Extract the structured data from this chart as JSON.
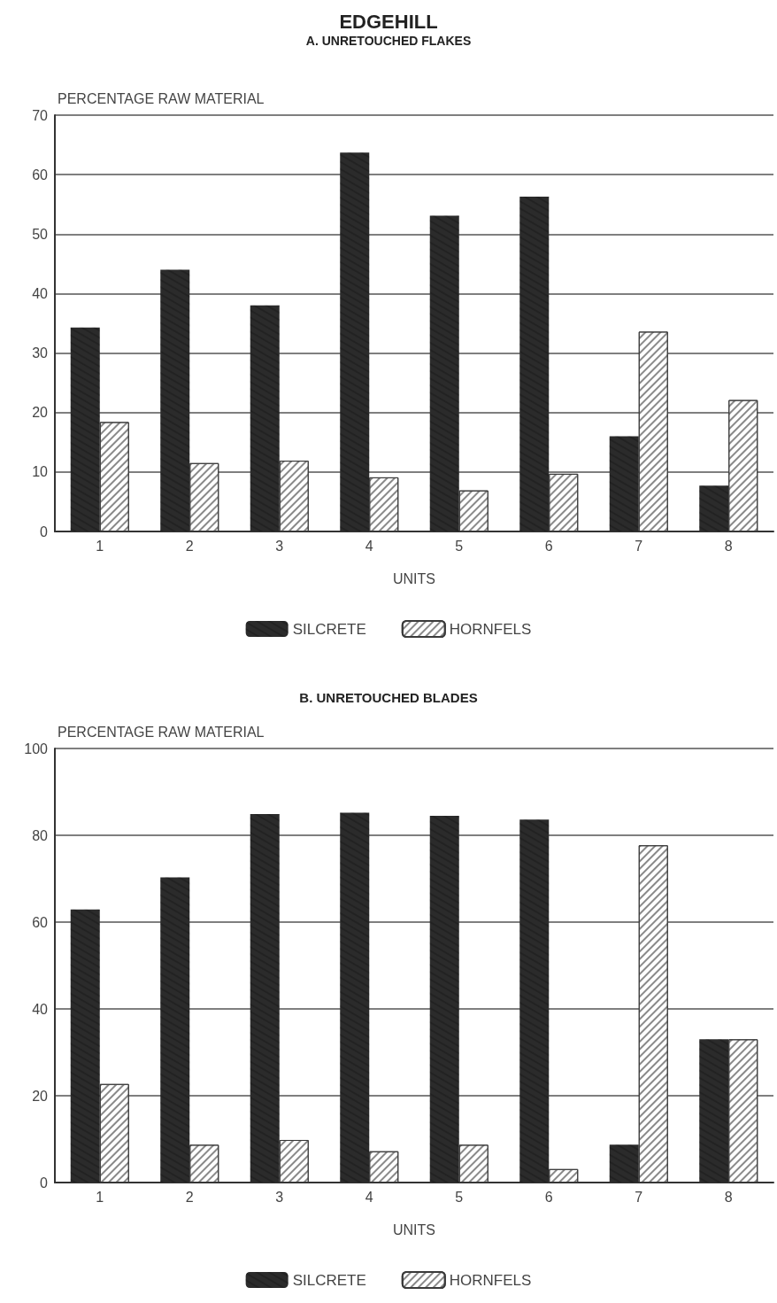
{
  "chart_data": [
    {
      "type": "bar",
      "title": "EDGEHILL",
      "subtitle": "A. UNRETOUCHED FLAKES",
      "xlabel": "UNITS",
      "ylabel": "PERCENTAGE RAW MATERIAL",
      "categories": [
        "1",
        "2",
        "3",
        "4",
        "5",
        "6",
        "7",
        "8"
      ],
      "series": [
        {
          "name": "SILCRETE",
          "color": "#2b2b2b",
          "values": [
            34.3,
            44,
            38,
            63.7,
            53.1,
            56.3,
            16,
            7.7
          ]
        },
        {
          "name": "HORNFELS",
          "color": "#3a3a3a",
          "values": [
            18.4,
            11.5,
            11.9,
            9.1,
            6.9,
            9.7,
            33.6,
            22.1
          ]
        }
      ],
      "ylim": [
        0,
        70
      ],
      "yticks": [
        0,
        10,
        20,
        30,
        40,
        50,
        60,
        70
      ],
      "grid": "y",
      "legend": "bottom"
    },
    {
      "type": "bar",
      "title": "B. UNRETOUCHED BLADES",
      "xlabel": "UNITS",
      "ylabel": "PERCENTAGE RAW MATERIAL",
      "categories": [
        "1",
        "2",
        "3",
        "4",
        "5",
        "6",
        "7",
        "8"
      ],
      "series": [
        {
          "name": "SILCRETE",
          "color": "#2b2b2b",
          "values": [
            62.9,
            70.3,
            84.9,
            85.2,
            84.5,
            83.6,
            8.7,
            33
          ]
        },
        {
          "name": "HORNFELS",
          "color": "#3a3a3a",
          "values": [
            22.7,
            8.7,
            9.8,
            7.2,
            8.7,
            3.1,
            77.7,
            33
          ]
        }
      ],
      "ylim": [
        0,
        100
      ],
      "yticks": [
        0,
        20,
        40,
        60,
        80,
        100
      ],
      "grid": "y",
      "legend": "bottom"
    }
  ]
}
